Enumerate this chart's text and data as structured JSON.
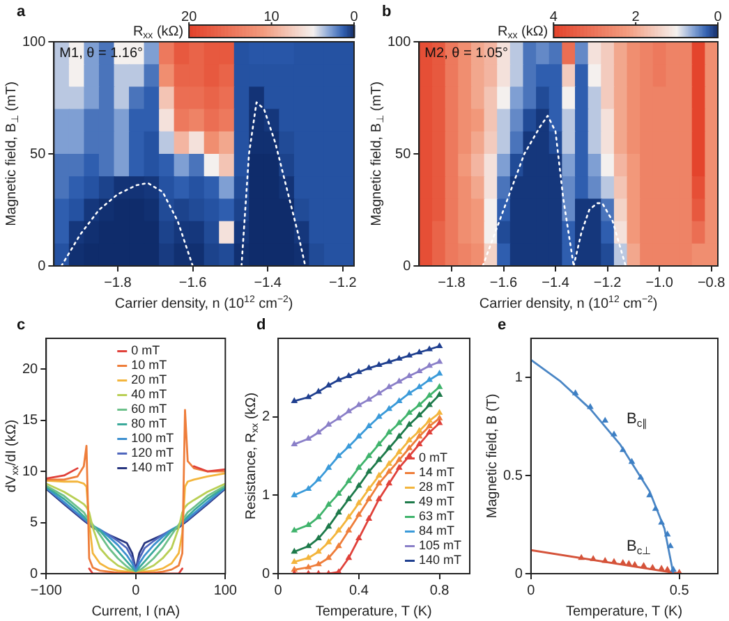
{
  "chart_data": [
    {
      "type": "heatmap",
      "title": "a",
      "xlabel": "Carrier density, n (10$^{12}$ cm$^{−2}$)",
      "ylabel": "Magnetic field, B$_{⊥}$ (mT)",
      "clabel": "R$_{xx}$ (kΩ)",
      "annotations": [
        "M1, θ = 1.16°"
      ],
      "x": [
        -1.95,
        -1.91,
        -1.87,
        -1.83,
        -1.79,
        -1.75,
        -1.71,
        -1.67,
        -1.63,
        -1.59,
        -1.55,
        -1.51,
        -1.47,
        -1.43,
        -1.39,
        -1.35,
        -1.31,
        -1.27,
        -1.23,
        -1.19
      ],
      "cells": [
        [
          4,
          5,
          3,
          2,
          5,
          5,
          3,
          14,
          17,
          16,
          17,
          17,
          1.2,
          1.3,
          1.3,
          1.3,
          1.2,
          1.2,
          1.2,
          1.2
        ],
        [
          4,
          5,
          3,
          2,
          4,
          4,
          2,
          12,
          16,
          16,
          17,
          16,
          1.2,
          1.2,
          1.2,
          1.2,
          1.2,
          1.2,
          1.2,
          1.2
        ],
        [
          4,
          4,
          3,
          2,
          4,
          2,
          1.5,
          8,
          15,
          15,
          16,
          15,
          1.2,
          0.4,
          1.2,
          1.2,
          1.2,
          1.2,
          1.2,
          1.2
        ],
        [
          3,
          3,
          2,
          2,
          3,
          1.5,
          1.5,
          6,
          14,
          13,
          15,
          14,
          1.2,
          0.3,
          0.5,
          1.2,
          1.2,
          1.2,
          1.2,
          1.2
        ],
        [
          3,
          3,
          2,
          2,
          3,
          1.5,
          1.2,
          4,
          9,
          6,
          12,
          10,
          1.2,
          0.3,
          0.3,
          1,
          1.2,
          1.2,
          1.2,
          1.2
        ],
        [
          2,
          2,
          1.5,
          2,
          3,
          1.5,
          1.2,
          1.5,
          3,
          2,
          5,
          8,
          1.2,
          0.2,
          0.2,
          0.8,
          1.2,
          1.2,
          1.2,
          1.2
        ],
        [
          2,
          1.5,
          1.2,
          0.8,
          0.4,
          0.4,
          0.5,
          1.2,
          1.5,
          1.2,
          1.5,
          3,
          1,
          0.2,
          0.2,
          0.4,
          1.2,
          1.2,
          1.2,
          1.2
        ],
        [
          1.5,
          1.2,
          0.5,
          0.3,
          0.2,
          0.2,
          0.3,
          1,
          0.8,
          1,
          1.2,
          1.5,
          0.8,
          0.2,
          0.2,
          0.2,
          1,
          1.2,
          1.2,
          1.2
        ],
        [
          1.5,
          0.5,
          0.3,
          0.2,
          0.2,
          0.2,
          0.2,
          0.8,
          0.5,
          0.5,
          1,
          6,
          0.5,
          0.2,
          0.2,
          0.2,
          0.5,
          1.2,
          1.2,
          1.2
        ],
        [
          1.2,
          0.3,
          0.2,
          0.2,
          0.2,
          0.2,
          0.2,
          0.6,
          0.3,
          0.3,
          0.8,
          1,
          0.3,
          0.2,
          0.2,
          0.2,
          0.3,
          1,
          1.2,
          1.2
        ]
      ],
      "clim": [
        20,
        0
      ],
      "cticks": [
        20,
        10,
        0
      ],
      "series": [
        {
          "type": "line",
          "color": "#ffffff",
          "x": [
            -1.95,
            -1.9,
            -1.85,
            -1.8,
            -1.75,
            -1.72,
            -1.68,
            -1.64,
            -1.6
          ],
          "values": [
            0,
            14,
            25,
            32,
            36,
            37,
            33,
            20,
            0
          ]
        },
        {
          "type": "line",
          "color": "#ffffff",
          "x": [
            -1.47,
            -1.45,
            -1.43,
            -1.41,
            -1.38,
            -1.35,
            -1.32,
            -1.3
          ],
          "values": [
            0,
            50,
            73,
            70,
            55,
            35,
            15,
            0
          ]
        }
      ],
      "line_style": "dotted",
      "xlim": [
        -1.97,
        -1.17
      ],
      "xticks": [
        {
          "value": -1.8,
          "label": "−1.8"
        },
        {
          "value": -1.6,
          "label": "−1.6"
        },
        {
          "value": -1.4,
          "label": "−1.4"
        },
        {
          "value": -1.2,
          "label": "−1.2"
        }
      ],
      "ylim": [
        0,
        100
      ],
      "yticks": [
        0,
        50,
        100
      ]
    },
    {
      "type": "heatmap",
      "title": "b",
      "xlabel": "Carrier density, n (10$^{12}$ cm$^{−2}$)",
      "ylabel": "Magnetic field, B$_{⊥}$ (mT)",
      "clabel": "R$_{xx}$ (kΩ)",
      "annotations": [
        "M2, θ = 1.05°"
      ],
      "x": [
        -1.9,
        -1.85,
        -1.8,
        -1.75,
        -1.7,
        -1.65,
        -1.6,
        -1.55,
        -1.5,
        -1.45,
        -1.4,
        -1.35,
        -1.3,
        -1.25,
        -1.2,
        -1.15,
        -1.1,
        -1.05,
        -1.0,
        -0.95,
        -0.9,
        -0.85,
        -0.8
      ],
      "cells": [
        [
          3.6,
          3.4,
          2.8,
          2.4,
          2,
          1.8,
          1.2,
          0.8,
          0.4,
          0.5,
          0.4,
          3,
          0.5,
          1.2,
          1.5,
          2,
          2.4,
          2.6,
          2.8,
          2.6,
          2.6,
          3.8,
          2.4
        ],
        [
          3.6,
          3.4,
          2.8,
          2.4,
          2,
          1.8,
          1.2,
          0.8,
          0.4,
          0.3,
          0.3,
          1.5,
          0.3,
          1,
          1.5,
          2,
          2.4,
          2.6,
          2.8,
          2.6,
          2.6,
          3.8,
          2.4
        ],
        [
          3.6,
          3.4,
          2.8,
          2.4,
          2,
          1.6,
          1,
          0.6,
          0.4,
          0.2,
          0.3,
          1,
          0.3,
          0.8,
          1.5,
          2,
          2.4,
          2.6,
          2.6,
          2.6,
          2.6,
          3.8,
          2.4
        ],
        [
          3.6,
          3.4,
          2.8,
          2.4,
          2.2,
          1.6,
          0.8,
          0.5,
          0.2,
          0.1,
          0.3,
          0.8,
          0.3,
          0.8,
          1.2,
          2,
          2.4,
          2.6,
          2.6,
          2.6,
          2.6,
          3.8,
          2.4
        ],
        [
          3.6,
          3.4,
          2.8,
          2.4,
          2,
          1.5,
          0.8,
          0.4,
          0.1,
          0.1,
          0.2,
          0.8,
          0.3,
          0.8,
          1.2,
          2,
          2.4,
          2.6,
          2.6,
          2.6,
          2.6,
          3.8,
          2.4
        ],
        [
          3.6,
          3.4,
          2.8,
          2.2,
          1.8,
          1.2,
          0.6,
          0.2,
          0.1,
          0.1,
          0.1,
          0.6,
          0.3,
          0.6,
          1,
          1.8,
          2.2,
          2.6,
          2.6,
          2.6,
          2.6,
          3.8,
          2.4
        ],
        [
          3.6,
          3.4,
          2.8,
          2.4,
          2,
          1.2,
          0.4,
          0.1,
          0.1,
          0.1,
          0.1,
          0.5,
          0.3,
          0.5,
          0.8,
          1.6,
          2.2,
          2.6,
          2.6,
          2.6,
          2.6,
          3.6,
          2.4
        ],
        [
          3.6,
          3.4,
          2.8,
          2.4,
          2.2,
          1,
          0.3,
          0.1,
          0.1,
          0.1,
          0.1,
          0.5,
          0.1,
          0.1,
          0.4,
          1.4,
          2.2,
          2.6,
          2.6,
          2.6,
          2.6,
          3.4,
          2.4
        ],
        [
          3.6,
          3.2,
          2.8,
          2.4,
          2.2,
          1,
          0.2,
          0.1,
          0.1,
          0.1,
          0.1,
          0.3,
          0.1,
          0.1,
          0.3,
          1.2,
          2.2,
          2.6,
          2.6,
          2.6,
          2.6,
          3,
          2.4
        ],
        [
          3.6,
          3.2,
          2.8,
          2.6,
          2.4,
          1.4,
          0.3,
          0.1,
          0.1,
          0.1,
          0.1,
          0.3,
          0.1,
          0.1,
          0.2,
          0.8,
          2,
          2.6,
          2.6,
          2.6,
          2.6,
          2.4,
          2.4
        ]
      ],
      "clim": [
        4,
        0
      ],
      "cticks": [
        4,
        2,
        0
      ],
      "series": [
        {
          "type": "line",
          "color": "#ffffff",
          "x": [
            -1.68,
            -1.6,
            -1.52,
            -1.46,
            -1.43,
            -1.4,
            -1.37,
            -1.33
          ],
          "values": [
            0,
            25,
            50,
            62,
            67,
            60,
            30,
            0
          ]
        },
        {
          "type": "line",
          "color": "#ffffff",
          "x": [
            -1.33,
            -1.3,
            -1.27,
            -1.24,
            -1.22,
            -1.18,
            -1.15,
            -1.13
          ],
          "values": [
            0,
            15,
            25,
            28,
            28,
            20,
            8,
            0
          ]
        }
      ],
      "line_style": "dotted",
      "xlim": [
        -1.925,
        -0.775
      ],
      "xticks": [
        {
          "value": -1.8,
          "label": "−1.8"
        },
        {
          "value": -1.6,
          "label": "−1.6"
        },
        {
          "value": -1.4,
          "label": "−1.4"
        },
        {
          "value": -1.2,
          "label": "−1.2"
        },
        {
          "value": -1.0,
          "label": "−1.0"
        },
        {
          "value": -0.8,
          "label": "−0.8"
        }
      ],
      "ylim": [
        0,
        100
      ],
      "yticks": [
        0,
        50,
        100
      ]
    },
    {
      "type": "line",
      "title": "c",
      "xlabel": "Current, I (nA)",
      "ylabel": "dV$_{xx}$/dI (kΩ)",
      "x": [
        -100,
        -80,
        -65,
        -58,
        -55,
        -52,
        -48,
        -40,
        -30,
        -20,
        -10,
        -4,
        0,
        4,
        10,
        20,
        30,
        40,
        48,
        52,
        55,
        58,
        65,
        80,
        100
      ],
      "series": [
        {
          "name": "0 mT",
          "color": "#e0413a",
          "values": [
            9.3,
            9.6,
            10.3,
            null,
            null,
            0.5,
            0,
            0,
            0,
            0,
            0,
            0,
            0,
            0,
            0,
            0,
            0,
            0,
            0,
            0.5,
            null,
            null,
            10.5,
            10,
            10.2
          ]
        },
        {
          "name": "10 mT",
          "color": "#ee7d3a",
          "values": [
            9.2,
            9.2,
            9.5,
            10.5,
            12.5,
            1.5,
            0.6,
            0.3,
            0.2,
            0.1,
            0.1,
            0.1,
            0,
            0.1,
            0.1,
            0.1,
            0.2,
            0.4,
            0.8,
            2,
            16,
            11,
            10.3,
            10,
            10
          ]
        },
        {
          "name": "20 mT",
          "color": "#f3b53c",
          "values": [
            9.1,
            9,
            9,
            8.8,
            8.5,
            5,
            2,
            1,
            0.5,
            0.3,
            0.2,
            0.1,
            0,
            0.1,
            0.2,
            0.3,
            0.5,
            1,
            2,
            4,
            8.5,
            9,
            9.2,
            9.5,
            9.8
          ]
        },
        {
          "name": "40 mT",
          "color": "#b9cf55",
          "values": [
            8.8,
            8,
            7.2,
            6.8,
            6.5,
            6,
            4.5,
            2.5,
            1.5,
            0.8,
            0.4,
            0.2,
            0,
            0.2,
            0.4,
            0.8,
            1.5,
            2.5,
            4.5,
            6,
            6.5,
            6.8,
            7.2,
            8,
            8.8
          ]
        },
        {
          "name": "60 mT",
          "color": "#6cc08a",
          "values": [
            8.6,
            7.6,
            6.5,
            6,
            5.6,
            5.3,
            4.8,
            3.8,
            2.5,
            1.5,
            0.7,
            0.3,
            0,
            0.3,
            0.7,
            1.5,
            2.5,
            3.8,
            4.8,
            5.3,
            5.6,
            6,
            6.5,
            7.6,
            8.6
          ]
        },
        {
          "name": "80 mT",
          "color": "#3aa99a",
          "values": [
            8.5,
            7.3,
            6.2,
            5.6,
            5.3,
            5.1,
            4.7,
            4.2,
            3.2,
            2.2,
            1.2,
            0.6,
            0,
            0.6,
            1.2,
            2.2,
            3.2,
            4.2,
            4.7,
            5.1,
            5.3,
            5.6,
            6.2,
            7.3,
            8.5
          ]
        },
        {
          "name": "100 mT",
          "color": "#3c8fcf",
          "values": [
            8.4,
            7,
            5.9,
            5.4,
            5.2,
            5,
            4.7,
            4.3,
            3.6,
            2.8,
            1.8,
            1,
            0.2,
            1,
            1.8,
            2.8,
            3.6,
            4.3,
            4.7,
            5,
            5.2,
            5.4,
            5.9,
            7,
            8.4
          ]
        },
        {
          "name": "120 mT",
          "color": "#4f66bd",
          "values": [
            8.4,
            6.9,
            5.8,
            5.3,
            5.1,
            4.9,
            4.6,
            4.3,
            3.8,
            3.2,
            2.5,
            1.5,
            0.3,
            1.5,
            2.5,
            3.2,
            3.8,
            4.3,
            4.6,
            4.9,
            5.1,
            5.3,
            5.8,
            6.9,
            8.4
          ]
        },
        {
          "name": "140 mT",
          "color": "#27357f",
          "values": [
            8.3,
            6.8,
            5.7,
            5.2,
            5,
            4.8,
            4.5,
            4.2,
            3.8,
            3.4,
            3,
            2,
            0.4,
            2,
            3,
            3.4,
            3.8,
            4.2,
            4.5,
            4.8,
            5,
            5.2,
            5.7,
            6.8,
            8.3
          ]
        }
      ],
      "legend": "top",
      "xlim": [
        -100,
        100
      ],
      "xticks": [
        {
          "value": -100,
          "label": "−100"
        },
        0,
        100
      ],
      "ylim": [
        0,
        23
      ],
      "yticks": [
        0,
        5,
        10,
        15,
        20
      ]
    },
    {
      "type": "line",
      "title": "d",
      "xlabel": "Temperature, T (K)",
      "ylabel": "Resistance, R$_{xx}$ (kΩ)",
      "x": [
        0.08,
        0.15,
        0.2,
        0.25,
        0.3,
        0.35,
        0.4,
        0.45,
        0.5,
        0.55,
        0.6,
        0.65,
        0.7,
        0.75,
        0.8
      ],
      "series": [
        {
          "name": "0 mT",
          "color": "#e0413a",
          "values": [
            0,
            0,
            0,
            0,
            0.02,
            0.2,
            0.45,
            0.7,
            0.95,
            1.15,
            1.35,
            1.5,
            1.65,
            1.8,
            1.92
          ]
        },
        {
          "name": "14 mT",
          "color": "#ee7d3a",
          "values": [
            0.05,
            0.08,
            0.12,
            0.2,
            0.35,
            0.55,
            0.75,
            0.95,
            1.15,
            1.3,
            1.45,
            1.6,
            1.75,
            1.88,
            1.98
          ]
        },
        {
          "name": "28 mT",
          "color": "#f3b53c",
          "values": [
            0.15,
            0.2,
            0.28,
            0.4,
            0.55,
            0.72,
            0.9,
            1.08,
            1.25,
            1.4,
            1.55,
            1.7,
            1.82,
            1.95,
            2.05
          ]
        },
        {
          "name": "49 mT",
          "color": "#1d7a4a",
          "values": [
            0.28,
            0.35,
            0.45,
            0.6,
            0.78,
            0.95,
            1.12,
            1.3,
            1.45,
            1.6,
            1.75,
            1.9,
            2.02,
            2.15,
            2.28
          ]
        },
        {
          "name": "63 mT",
          "color": "#3fb36b",
          "values": [
            0.55,
            0.62,
            0.72,
            0.88,
            1.02,
            1.18,
            1.35,
            1.5,
            1.65,
            1.8,
            1.92,
            2.05,
            2.15,
            2.27,
            2.38
          ]
        },
        {
          "name": "84 mT",
          "color": "#3a9ad9",
          "values": [
            1,
            1.08,
            1.2,
            1.35,
            1.5,
            1.62,
            1.75,
            1.88,
            2,
            2.1,
            2.2,
            2.3,
            2.38,
            2.47,
            2.55
          ]
        },
        {
          "name": "105 mT",
          "color": "#8a7fc8",
          "values": [
            1.65,
            1.72,
            1.8,
            1.9,
            1.98,
            2.07,
            2.15,
            2.22,
            2.3,
            2.38,
            2.45,
            2.52,
            2.58,
            2.65,
            2.7
          ]
        },
        {
          "name": "140 mT",
          "color": "#1f3f8f",
          "values": [
            2.2,
            2.25,
            2.32,
            2.4,
            2.47,
            2.52,
            2.57,
            2.62,
            2.66,
            2.7,
            2.74,
            2.78,
            2.82,
            2.86,
            2.9
          ]
        }
      ],
      "marker": "triangle",
      "legend": "bottom right",
      "xlim": [
        0,
        0.95
      ],
      "xticks": [
        0,
        0.4,
        0.8
      ],
      "ylim": [
        0,
        3
      ],
      "yticks": [
        0,
        1,
        2
      ]
    },
    {
      "type": "scatter",
      "title": "e",
      "xlabel": "Temperature, T (K)",
      "ylabel": "Magnetic field, B (T)",
      "series": [
        {
          "type": "line",
          "marker": "none",
          "color": "#4a86c5",
          "x": [
            0,
            0.1,
            0.2,
            0.3,
            0.4,
            0.45,
            0.48
          ],
          "values": [
            1.09,
            0.98,
            0.84,
            0.66,
            0.42,
            0.23,
            0
          ]
        },
        {
          "name": "B$_{c∥}$",
          "marker": "triangle",
          "color": "#3d7fc4",
          "x": [
            0.15,
            0.2,
            0.25,
            0.28,
            0.31,
            0.34,
            0.37,
            0.4,
            0.42,
            0.44,
            0.46,
            0.47,
            0.48
          ],
          "values": [
            0.92,
            0.85,
            0.78,
            0.71,
            0.63,
            0.57,
            0.49,
            0.4,
            0.33,
            0.26,
            0.2,
            0.14,
            0.02
          ]
        },
        {
          "type": "line",
          "marker": "none",
          "color": "#d5533a",
          "x": [
            0,
            0.5
          ],
          "values": [
            0.12,
            0
          ]
        },
        {
          "name": "B$_{c⊥}$",
          "marker": "triangle",
          "color": "#d5533a",
          "x": [
            0.17,
            0.21,
            0.25,
            0.28,
            0.31,
            0.33,
            0.35,
            0.38,
            0.41,
            0.44,
            0.46,
            0.5
          ],
          "values": [
            0.08,
            0.075,
            0.065,
            0.06,
            0.055,
            0.05,
            0.045,
            0.04,
            0.03,
            0.025,
            0.02,
            0.005
          ]
        }
      ],
      "xlim": [
        0,
        0.63
      ],
      "xticks": [
        0,
        0.5
      ],
      "ylim": [
        0,
        1.2
      ],
      "yticks": [
        0,
        0.5,
        1.0
      ]
    }
  ]
}
